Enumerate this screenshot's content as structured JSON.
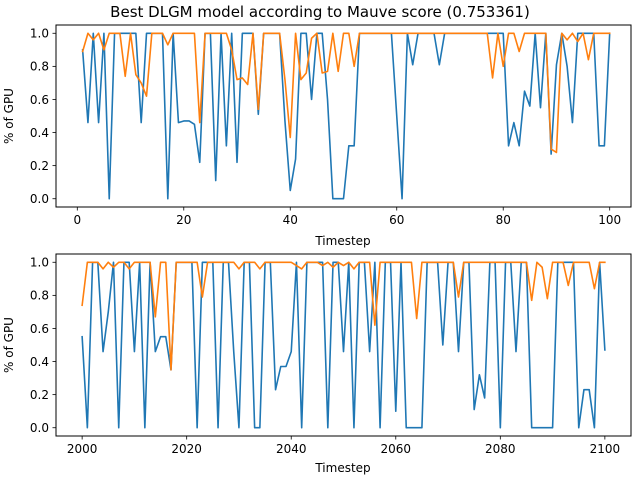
{
  "figure": {
    "title": "Best DLGM model according to Mauve score (0.753361)"
  },
  "chart_data": [
    {
      "type": "line",
      "xlabel": "Timestep",
      "ylabel": "% of GPU",
      "xlim": [
        -4,
        104
      ],
      "ylim": [
        -0.05,
        1.05
      ],
      "xticks": [
        0,
        20,
        40,
        60,
        80,
        100
      ],
      "yticks": [
        0.0,
        0.2,
        0.4,
        0.6,
        0.8,
        1.0
      ],
      "grid": false,
      "x": [
        1,
        2,
        3,
        4,
        5,
        6,
        7,
        8,
        9,
        10,
        11,
        12,
        13,
        14,
        15,
        16,
        17,
        18,
        19,
        20,
        21,
        22,
        23,
        24,
        25,
        26,
        27,
        28,
        29,
        30,
        31,
        32,
        33,
        34,
        35,
        36,
        37,
        38,
        39,
        40,
        41,
        42,
        43,
        44,
        45,
        46,
        47,
        48,
        49,
        50,
        51,
        52,
        53,
        54,
        55,
        56,
        57,
        58,
        59,
        60,
        61,
        62,
        63,
        64,
        65,
        66,
        67,
        68,
        69,
        70,
        71,
        72,
        73,
        74,
        75,
        76,
        77,
        78,
        79,
        80,
        81,
        82,
        83,
        84,
        85,
        86,
        87,
        88,
        89,
        90,
        91,
        92,
        93,
        94,
        95,
        96,
        97,
        98,
        99,
        100
      ],
      "series": [
        {
          "color": "#1f77b4",
          "values": [
            0.9,
            0.46,
            1.0,
            0.46,
            1.0,
            0.0,
            1.0,
            1.0,
            1.0,
            1.0,
            1.0,
            0.46,
            1.0,
            1.0,
            1.0,
            1.0,
            0.0,
            1.0,
            0.46,
            0.47,
            0.47,
            0.45,
            0.22,
            1.0,
            1.0,
            0.11,
            1.0,
            0.32,
            1.0,
            0.22,
            1.0,
            1.0,
            1.0,
            0.51,
            1.0,
            1.0,
            1.0,
            1.0,
            0.47,
            0.05,
            0.24,
            1.0,
            1.0,
            0.6,
            1.0,
            1.0,
            0.6,
            0.0,
            0.0,
            0.0,
            0.32,
            0.32,
            1.0,
            1.0,
            1.0,
            1.0,
            1.0,
            1.0,
            1.0,
            0.5,
            0.0,
            1.0,
            0.81,
            1.0,
            1.0,
            1.0,
            1.0,
            0.81,
            1.0,
            1.0,
            1.0,
            1.0,
            1.0,
            1.0,
            1.0,
            1.0,
            1.0,
            1.0,
            1.0,
            1.0,
            0.32,
            0.46,
            0.32,
            0.65,
            0.56,
            1.0,
            0.55,
            1.0,
            0.27,
            0.81,
            1.0,
            0.8,
            0.46,
            1.0,
            1.0,
            1.0,
            1.0,
            0.32,
            0.32,
            1.0
          ]
        },
        {
          "color": "#ff7f0e",
          "values": [
            0.89,
            1.0,
            0.96,
            1.0,
            0.9,
            1.0,
            1.0,
            1.0,
            0.74,
            1.0,
            0.75,
            0.7,
            0.62,
            1.0,
            1.0,
            1.0,
            0.93,
            1.0,
            1.0,
            1.0,
            1.0,
            1.0,
            0.46,
            1.0,
            1.0,
            1.0,
            1.0,
            1.0,
            0.9,
            0.72,
            0.73,
            0.69,
            1.0,
            0.54,
            1.0,
            1.0,
            1.0,
            1.0,
            0.72,
            0.37,
            1.0,
            0.72,
            0.76,
            0.97,
            1.0,
            0.76,
            0.77,
            1.0,
            0.77,
            1.0,
            1.0,
            0.8,
            1.0,
            1.0,
            1.0,
            1.0,
            1.0,
            1.0,
            1.0,
            1.0,
            1.0,
            1.0,
            1.0,
            1.0,
            1.0,
            1.0,
            1.0,
            1.0,
            1.0,
            1.0,
            1.0,
            1.0,
            1.0,
            1.0,
            1.0,
            1.0,
            1.0,
            0.73,
            1.0,
            0.8,
            1.0,
            1.0,
            0.89,
            1.0,
            1.0,
            1.0,
            1.0,
            1.0,
            0.3,
            0.28,
            1.0,
            0.96,
            1.0,
            0.95,
            1.0,
            0.84,
            1.0,
            1.0,
            1.0,
            1.0
          ]
        }
      ]
    },
    {
      "type": "line",
      "xlabel": "Timestep",
      "ylabel": "% of GPU",
      "xlim": [
        1995,
        2105
      ],
      "ylim": [
        -0.05,
        1.05
      ],
      "xticks": [
        2000,
        2020,
        2040,
        2060,
        2080,
        2100
      ],
      "yticks": [
        0.0,
        0.2,
        0.4,
        0.6,
        0.8,
        1.0
      ],
      "grid": false,
      "x": [
        2000,
        2001,
        2002,
        2003,
        2004,
        2005,
        2006,
        2007,
        2008,
        2009,
        2010,
        2011,
        2012,
        2013,
        2014,
        2015,
        2016,
        2017,
        2018,
        2019,
        2020,
        2021,
        2022,
        2023,
        2024,
        2025,
        2026,
        2027,
        2028,
        2029,
        2030,
        2031,
        2032,
        2033,
        2034,
        2035,
        2036,
        2037,
        2038,
        2039,
        2040,
        2041,
        2042,
        2043,
        2044,
        2045,
        2046,
        2047,
        2048,
        2049,
        2050,
        2051,
        2052,
        2053,
        2054,
        2055,
        2056,
        2057,
        2058,
        2059,
        2060,
        2061,
        2062,
        2063,
        2064,
        2065,
        2066,
        2067,
        2068,
        2069,
        2070,
        2071,
        2072,
        2073,
        2074,
        2075,
        2076,
        2077,
        2078,
        2079,
        2080,
        2081,
        2082,
        2083,
        2084,
        2085,
        2086,
        2087,
        2088,
        2089,
        2090,
        2091,
        2092,
        2093,
        2094,
        2095,
        2096,
        2097,
        2098,
        2099,
        2100
      ],
      "series": [
        {
          "color": "#1f77b4",
          "values": [
            0.55,
            0.0,
            1.0,
            1.0,
            0.46,
            0.7,
            1.0,
            0.0,
            1.0,
            1.0,
            0.46,
            1.0,
            0.0,
            1.0,
            0.46,
            0.55,
            0.55,
            0.35,
            1.0,
            1.0,
            1.0,
            1.0,
            0.0,
            1.0,
            1.0,
            1.0,
            0.0,
            1.0,
            1.0,
            0.46,
            0.0,
            1.0,
            1.0,
            0.0,
            0.0,
            1.0,
            1.0,
            0.23,
            0.37,
            0.37,
            0.46,
            1.0,
            0.0,
            1.0,
            1.0,
            1.0,
            1.0,
            0.0,
            1.0,
            1.0,
            0.46,
            1.0,
            0.0,
            1.0,
            1.0,
            0.46,
            1.0,
            0.0,
            1.0,
            1.0,
            0.1,
            1.0,
            0.0,
            0.0,
            0.0,
            0.0,
            1.0,
            1.0,
            1.0,
            0.5,
            1.0,
            1.0,
            0.46,
            1.0,
            1.0,
            0.11,
            0.32,
            0.18,
            1.0,
            1.0,
            0.0,
            1.0,
            1.0,
            0.46,
            1.0,
            1.0,
            0.0,
            0.0,
            0.0,
            0.0,
            0.0,
            1.0,
            1.0,
            1.0,
            1.0,
            0.0,
            0.23,
            0.23,
            0.0,
            1.0,
            0.47
          ]
        },
        {
          "color": "#ff7f0e",
          "values": [
            0.74,
            1.0,
            1.0,
            1.0,
            0.96,
            1.0,
            0.97,
            1.0,
            1.0,
            0.96,
            1.0,
            1.0,
            1.0,
            1.0,
            0.67,
            1.0,
            1.0,
            0.35,
            1.0,
            1.0,
            1.0,
            1.0,
            1.0,
            0.79,
            1.0,
            1.0,
            1.0,
            1.0,
            1.0,
            1.0,
            0.96,
            1.0,
            1.0,
            1.0,
            0.96,
            1.0,
            1.0,
            1.0,
            1.0,
            1.0,
            1.0,
            0.98,
            0.96,
            1.0,
            1.0,
            1.0,
            0.98,
            1.0,
            0.97,
            1.0,
            0.98,
            1.0,
            0.96,
            1.0,
            1.0,
            1.0,
            0.62,
            1.0,
            1.0,
            1.0,
            1.0,
            1.0,
            1.0,
            1.0,
            0.66,
            1.0,
            1.0,
            1.0,
            1.0,
            1.0,
            1.0,
            1.0,
            0.79,
            1.0,
            1.0,
            1.0,
            1.0,
            1.0,
            1.0,
            1.0,
            1.0,
            1.0,
            1.0,
            1.0,
            1.0,
            1.0,
            0.77,
            1.0,
            0.97,
            0.78,
            1.0,
            1.0,
            1.0,
            0.86,
            1.0,
            1.0,
            1.0,
            1.0,
            0.84,
            1.0,
            1.0
          ]
        }
      ]
    }
  ]
}
